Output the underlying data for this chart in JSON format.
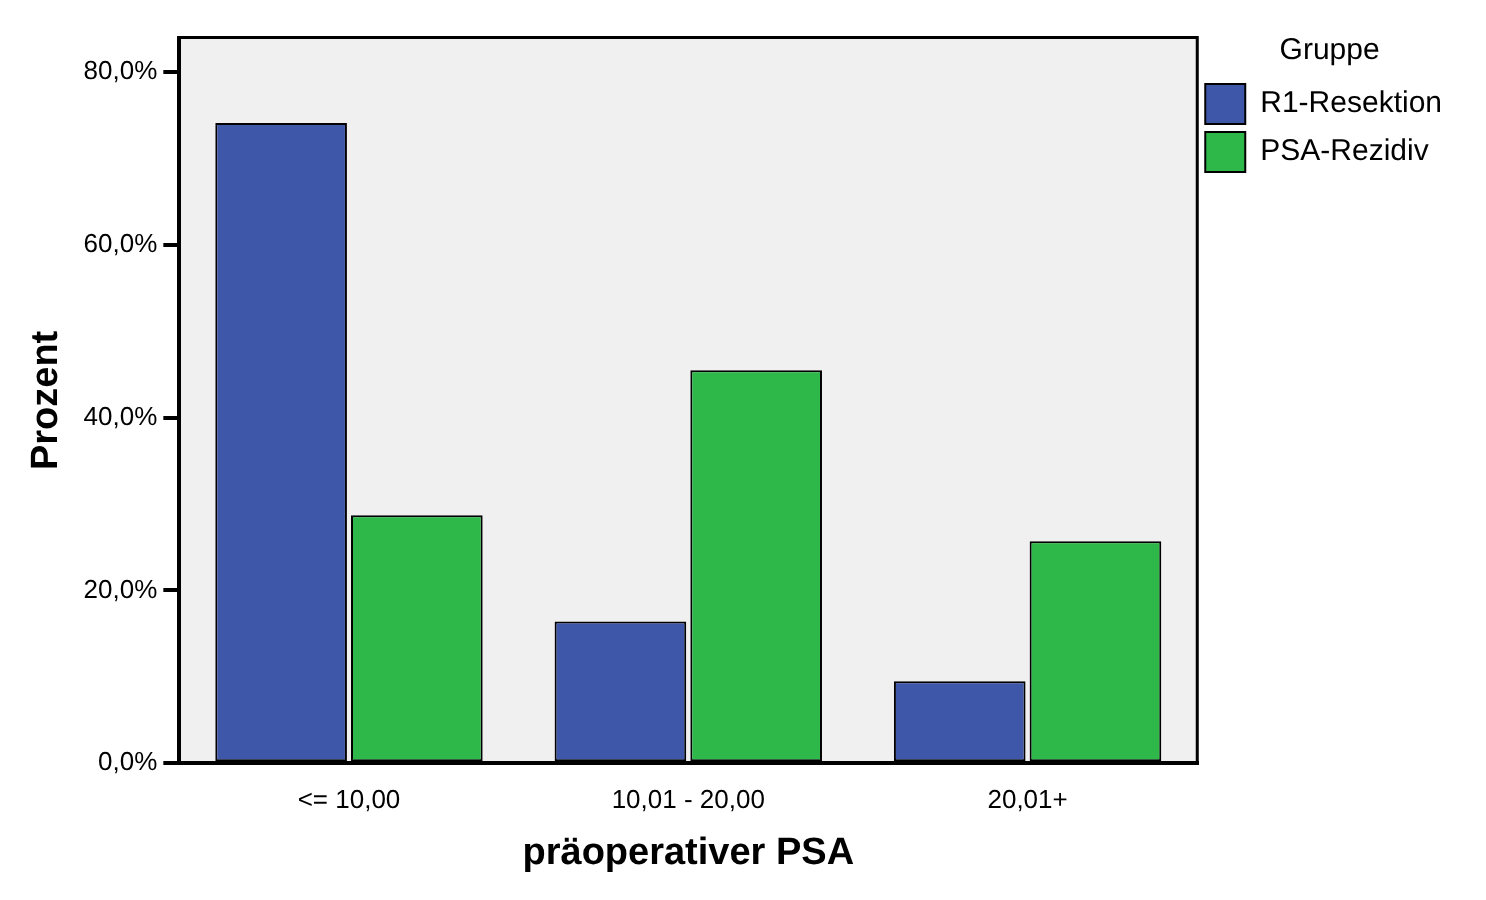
{
  "chart_data": {
    "type": "bar",
    "xlabel": "präoperativer PSA",
    "ylabel": "Prozent",
    "legend_title": "Gruppe",
    "legend": "top right",
    "grid": false,
    "categories": [
      "<= 10,00",
      "10,01 - 20,00",
      "20,01+"
    ],
    "series": [
      {
        "name": "R1-Resektion",
        "color": "#3f57a8",
        "values": [
          74.1,
          16.4,
          9.5
        ]
      },
      {
        "name": "PSA-Rezidiv",
        "color": "#2fb84a",
        "values": [
          28.7,
          45.5,
          25.7
        ]
      }
    ],
    "ylim": [
      0,
      84
    ],
    "yticks": [
      {
        "value": 0,
        "label": "0,0%"
      },
      {
        "value": 20,
        "label": "20,0%"
      },
      {
        "value": 40,
        "label": "40,0%"
      },
      {
        "value": 60,
        "label": "60,0%"
      },
      {
        "value": 80,
        "label": "80,0%"
      }
    ]
  }
}
